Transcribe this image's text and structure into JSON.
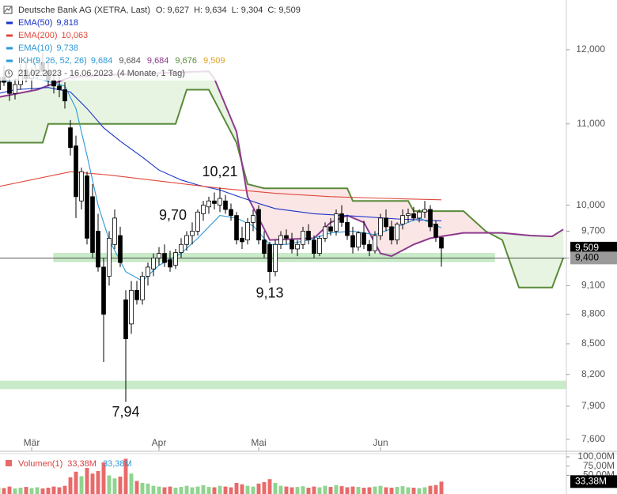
{
  "chart_data": {
    "type": "candlestick",
    "title": "Deutsche Bank AG (XETRA, Last)",
    "header_values": [
      {
        "key": "O:",
        "value": 9.627,
        "label": "9,627"
      },
      {
        "key": "H:",
        "value": 9.634,
        "label": "9,634"
      },
      {
        "key": "L:",
        "value": 9.304,
        "label": "9,304"
      },
      {
        "key": "C:",
        "value": 9.509,
        "label": "9,509"
      }
    ],
    "date_range": "21.02.2023 - 16.06.2023",
    "period": "(4 Monate, 1 Tag)",
    "log_scale": true,
    "xlim": [
      0,
      102
    ],
    "ylim": [
      7.5,
      12.72
    ],
    "xticks": [
      {
        "value": 6,
        "label": "Mär"
      },
      {
        "value": 29,
        "label": "Apr"
      },
      {
        "value": 47,
        "label": "Mai"
      },
      {
        "value": 69,
        "label": "Jun"
      }
    ],
    "yticks": [
      {
        "value": 12,
        "label": "12,000"
      },
      {
        "value": 11,
        "label": "11,000"
      },
      {
        "value": 10,
        "label": "10,000"
      },
      {
        "value": 9.7,
        "label": "9,700"
      },
      {
        "value": 9.4,
        "label": "9,400"
      },
      {
        "value": 9.1,
        "label": "9,100"
      },
      {
        "value": 8.8,
        "label": "8,800"
      },
      {
        "value": 8.5,
        "label": "8,500"
      },
      {
        "value": 8.2,
        "label": "8,200"
      },
      {
        "value": 7.9,
        "label": "7,900"
      },
      {
        "value": 7.6,
        "label": "7,600"
      }
    ],
    "up_color": "#ffffff",
    "down_color": "#000000",
    "candles": {
      "x": [
        0,
        1,
        2,
        3,
        4,
        5,
        6,
        7,
        8,
        9,
        10,
        11,
        12,
        13,
        14,
        15,
        16,
        17,
        18,
        19,
        20,
        21,
        22,
        23,
        24,
        25,
        26,
        27,
        28,
        29,
        30,
        31,
        32,
        33,
        34,
        35,
        36,
        37,
        38,
        39,
        40,
        41,
        42,
        43,
        44,
        45,
        46,
        47,
        48,
        49,
        50,
        51,
        52,
        53,
        54,
        55,
        56,
        57,
        58,
        59,
        60,
        61,
        62,
        63,
        64,
        65,
        66,
        67,
        68,
        69,
        70,
        71,
        72,
        73,
        74,
        75,
        76,
        77,
        78,
        79,
        80
      ],
      "open": [
        11.45,
        11.62,
        11.55,
        11.4,
        11.52,
        11.72,
        11.6,
        11.68,
        11.82,
        11.7,
        11.58,
        11.5,
        11.45,
        10.95,
        10.72,
        10.05,
        10.35,
        10.1,
        9.7,
        9.3,
        9.2,
        9.55,
        9.65,
        8.95,
        8.7,
        9.05,
        8.95,
        9.2,
        9.28,
        9.4,
        9.45,
        9.38,
        9.32,
        9.46,
        9.55,
        9.65,
        9.7,
        9.9,
        9.98,
        10.05,
        10.0,
        10.05,
        9.95,
        9.88,
        9.62,
        9.6,
        9.8,
        9.95,
        9.6,
        9.55,
        9.25,
        9.55,
        9.65,
        9.6,
        9.5,
        9.55,
        9.7,
        9.6,
        9.45,
        9.62,
        9.75,
        9.7,
        9.9,
        9.8,
        9.65,
        9.52,
        9.68,
        9.55,
        9.48,
        9.65,
        9.85,
        9.75,
        9.6,
        9.78,
        9.88,
        9.9,
        9.85,
        9.92,
        9.95,
        9.78,
        9.627
      ],
      "high": [
        11.7,
        11.78,
        11.66,
        11.6,
        11.8,
        11.85,
        11.75,
        11.9,
        11.95,
        11.8,
        11.72,
        11.65,
        11.55,
        11.05,
        10.85,
        10.45,
        10.4,
        10.25,
        9.9,
        9.4,
        9.7,
        9.95,
        9.75,
        9.05,
        9.15,
        9.15,
        9.25,
        9.35,
        9.45,
        9.52,
        9.55,
        9.48,
        9.5,
        9.62,
        9.7,
        9.8,
        9.95,
        10.05,
        10.1,
        10.15,
        10.21,
        10.12,
        10.02,
        9.92,
        9.75,
        9.85,
        9.95,
        10.0,
        9.7,
        9.58,
        9.6,
        9.7,
        9.72,
        9.68,
        9.6,
        9.75,
        9.78,
        9.65,
        9.65,
        9.8,
        9.85,
        9.95,
        10.0,
        9.88,
        9.75,
        9.7,
        9.82,
        9.6,
        9.7,
        9.9,
        9.95,
        9.82,
        9.8,
        9.95,
        9.96,
        9.98,
        9.95,
        10.05,
        10.0,
        9.82,
        9.634
      ],
      "low": [
        11.35,
        11.5,
        11.3,
        11.32,
        11.45,
        11.55,
        11.45,
        11.6,
        11.65,
        11.5,
        11.4,
        11.35,
        11.2,
        10.6,
        9.85,
        9.95,
        9.55,
        9.4,
        9.25,
        8.32,
        9.1,
        9.5,
        9.3,
        7.94,
        8.6,
        8.9,
        8.9,
        9.1,
        9.2,
        9.32,
        9.3,
        9.25,
        9.28,
        9.4,
        9.48,
        9.55,
        9.65,
        9.82,
        9.9,
        9.95,
        9.92,
        9.9,
        9.82,
        9.55,
        9.5,
        9.55,
        9.7,
        9.55,
        9.4,
        9.13,
        9.2,
        9.5,
        9.55,
        9.45,
        9.42,
        9.5,
        9.55,
        9.4,
        9.42,
        9.58,
        9.65,
        9.65,
        9.75,
        9.6,
        9.45,
        9.48,
        9.5,
        9.42,
        9.45,
        9.6,
        9.7,
        9.55,
        9.55,
        9.72,
        9.8,
        9.82,
        9.8,
        9.85,
        9.7,
        9.58,
        9.304
      ],
      "close": [
        11.62,
        11.55,
        11.4,
        11.52,
        11.72,
        11.6,
        11.68,
        11.82,
        11.7,
        11.58,
        11.5,
        11.45,
        11.3,
        10.7,
        10.1,
        10.4,
        9.62,
        9.46,
        9.3,
        8.8,
        9.62,
        9.85,
        9.35,
        8.55,
        9.05,
        8.95,
        9.2,
        9.3,
        9.4,
        9.45,
        9.35,
        9.3,
        9.46,
        9.55,
        9.65,
        9.7,
        9.92,
        10.0,
        10.05,
        10.02,
        10.08,
        9.95,
        9.88,
        9.6,
        9.58,
        9.8,
        9.88,
        9.6,
        9.45,
        9.25,
        9.55,
        9.65,
        9.62,
        9.5,
        9.55,
        9.7,
        9.6,
        9.45,
        9.62,
        9.75,
        9.7,
        9.9,
        9.8,
        9.65,
        9.52,
        9.68,
        9.55,
        9.48,
        9.65,
        9.85,
        9.75,
        9.6,
        9.78,
        9.88,
        9.9,
        9.85,
        9.92,
        9.95,
        9.75,
        9.63,
        9.509
      ]
    },
    "indicators": [
      {
        "name": "EMA(50)",
        "value": 9.818,
        "label": "9,818",
        "color": "#1a33c8",
        "x": [
          0,
          3,
          9,
          13,
          16,
          19,
          22,
          26,
          29,
          33,
          36,
          40,
          43,
          47,
          50,
          57,
          65,
          72,
          80
        ],
        "values": [
          11.4,
          11.45,
          11.48,
          11.42,
          11.2,
          10.95,
          10.78,
          10.58,
          10.42,
          10.3,
          10.24,
          10.18,
          10.11,
          10.02,
          9.96,
          9.9,
          9.87,
          9.84,
          9.818
        ]
      },
      {
        "name": "EMA(200)",
        "value": 10.063,
        "label": "10,063",
        "color": "#e0483a",
        "x": [
          0,
          13,
          20,
          30,
          40,
          50,
          60,
          70,
          80
        ],
        "values": [
          10.22,
          10.4,
          10.36,
          10.28,
          10.2,
          10.14,
          10.1,
          10.08,
          10.063
        ]
      },
      {
        "name": "EMA(10)",
        "value": 9.738,
        "label": "9,738",
        "color": "#2c98d6",
        "x": [
          0,
          6,
          12,
          14,
          16,
          18,
          20,
          23,
          26,
          29,
          33,
          36,
          40,
          43,
          46,
          49,
          52,
          56,
          60,
          64,
          68,
          72,
          76,
          80
        ],
        "values": [
          11.55,
          11.62,
          11.5,
          11.2,
          10.6,
          10.0,
          9.6,
          9.25,
          9.15,
          9.32,
          9.45,
          9.62,
          9.88,
          9.85,
          9.76,
          9.55,
          9.55,
          9.6,
          9.68,
          9.7,
          9.66,
          9.75,
          9.85,
          9.738
        ]
      }
    ],
    "ichimoku": {
      "name": "IKH(9, 26, 52, 26)",
      "legend_values": [
        {
          "value": 9.684,
          "label": "9,684",
          "color": "#2c98d6"
        },
        {
          "value": 9.684,
          "label": "9,684",
          "color": "#555555"
        },
        {
          "value": 9.684,
          "label": "9,684",
          "color": "#8e3a8e"
        },
        {
          "value": 9.676,
          "label": "9,676",
          "color": "#5a8a3a"
        },
        {
          "value": 9.509,
          "label": "9,509",
          "color": "#e0a020"
        }
      ],
      "span_a": {
        "color": "#8e3a8e",
        "x": [
          0,
          7,
          13,
          20,
          38,
          39,
          43,
          45,
          47,
          49,
          57,
          60,
          63,
          66,
          69,
          71,
          75,
          78,
          84,
          91,
          96,
          100,
          102
        ],
        "values": [
          11.35,
          11.45,
          11.62,
          11.65,
          11.7,
          11.6,
          10.9,
          10.1,
          9.85,
          9.6,
          9.62,
          9.8,
          9.88,
          9.8,
          9.45,
          9.42,
          9.55,
          9.62,
          9.68,
          9.68,
          9.65,
          9.64,
          9.72
        ]
      },
      "span_b": {
        "color": "#5a8a3a",
        "x": [
          0,
          8,
          9,
          32,
          34,
          38,
          43,
          45,
          48,
          63,
          64,
          74,
          75,
          84,
          88,
          91,
          94,
          100,
          102
        ],
        "values": [
          10.76,
          10.76,
          11.0,
          11.0,
          11.45,
          11.45,
          10.76,
          10.25,
          10.2,
          10.2,
          10.05,
          10.05,
          9.93,
          9.93,
          9.7,
          9.6,
          9.08,
          9.08,
          9.4
        ]
      },
      "bull_fill": "#e6f4e1",
      "bear_fill": "#fbe6e6"
    },
    "zones": [
      {
        "from": 9.36,
        "to": 9.45,
        "x": [
          10,
          89.6
        ],
        "color": "#bfe8bf"
      },
      {
        "from": 8.06,
        "to": 8.14,
        "color": "#bfe8bf"
      }
    ],
    "price_markers": [
      {
        "value": 9.509,
        "label": "9,509",
        "color": "#000000",
        "text_color": "#ffffff",
        "line": false
      },
      {
        "value": 9.4,
        "label": "9,400",
        "color": "#9a9a9a",
        "text_color": "#000000",
        "line": true
      }
    ],
    "annotations": [
      {
        "label": "10,21",
        "value": 10.21,
        "x": 40,
        "position": "above"
      },
      {
        "label": "9,70",
        "value": 9.7,
        "x": 31.5,
        "position": "above"
      },
      {
        "label": "9,13",
        "value": 9.13,
        "x": 49,
        "position": "below"
      },
      {
        "label": "7,94",
        "value": 7.94,
        "x": 23,
        "position": "below"
      }
    ],
    "volume": {
      "name": "Volumen(1)",
      "up_color": "#8fd48f",
      "down_color": "#e86a6a",
      "legend_values": [
        {
          "value": 33.38,
          "label": "33,38M",
          "color": "#d94040"
        },
        {
          "value": 33.38,
          "label": "33,38M",
          "color": "#2c98d6"
        }
      ],
      "ylim": [
        0,
        100
      ],
      "yticks": [
        {
          "value": 100,
          "label": "100,00M"
        },
        {
          "value": 75,
          "label": "75,00M"
        },
        {
          "value": 50,
          "label": "50,00M"
        }
      ],
      "marker": {
        "value": 33.38,
        "label": "33,38M"
      },
      "values": [
        18,
        16,
        20,
        15,
        17,
        19,
        16,
        18,
        15,
        17,
        20,
        18,
        22,
        45,
        60,
        48,
        70,
        55,
        62,
        85,
        50,
        42,
        47,
        95,
        55,
        35,
        30,
        28,
        22,
        20,
        18,
        20,
        17,
        19,
        22,
        18,
        20,
        24,
        19,
        18,
        22,
        20,
        18,
        30,
        26,
        22,
        20,
        28,
        32,
        40,
        30,
        22,
        20,
        18,
        19,
        21,
        17,
        20,
        18,
        22,
        19,
        24,
        21,
        18,
        20,
        19,
        17,
        18,
        20,
        22,
        18,
        17,
        19,
        21,
        18,
        17,
        16,
        18,
        22,
        24,
        33.38
      ]
    }
  }
}
